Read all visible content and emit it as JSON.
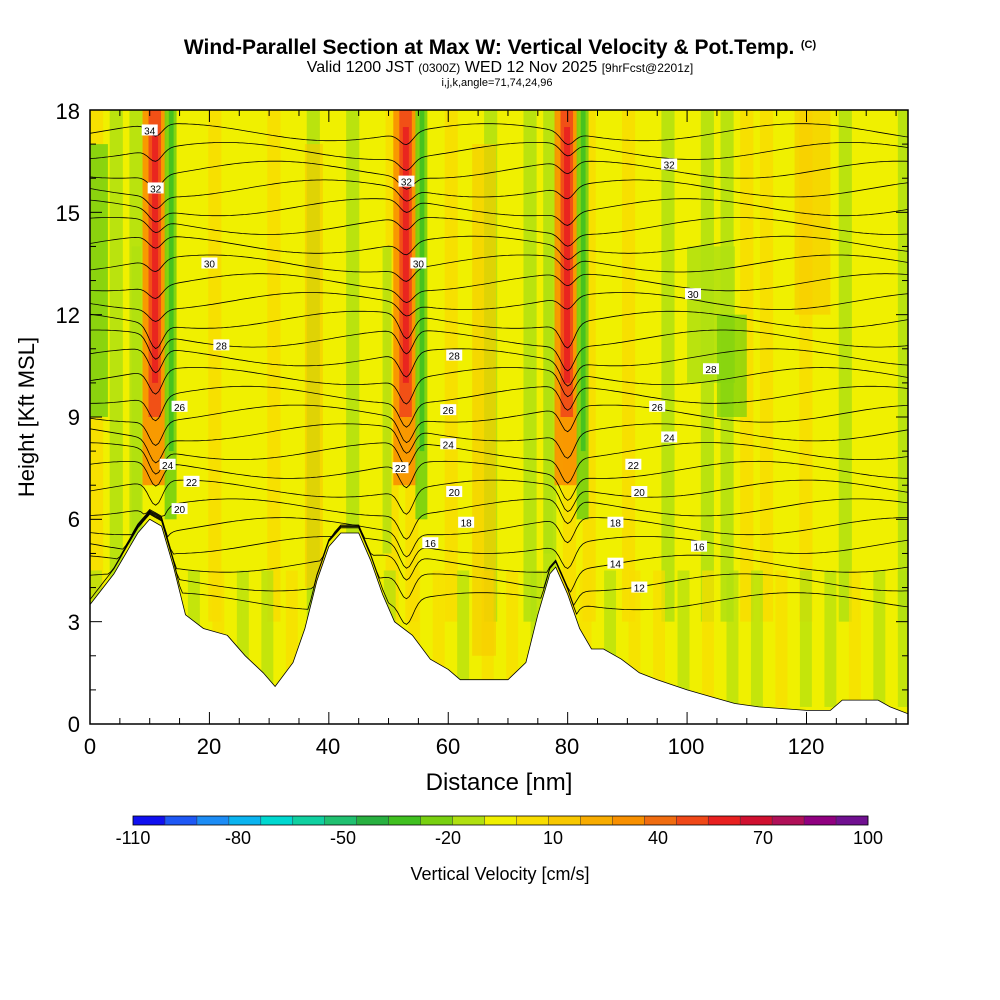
{
  "chart_data": {
    "type": "heatmap",
    "title": "Wind-Parallel Section at Max W: Vertical Velocity & Pot.Temp.",
    "title_mark": "(C)",
    "subtitle_parts": [
      "Valid 1200 JST",
      "(0300Z)",
      "WED 12 Nov 2025",
      "[9hrFcst@2201z]"
    ],
    "subtitle2": "i,j,k,angle=71,74,24,96",
    "xlabel": "Distance [nm]",
    "ylabel": "Height [Kft MSL]",
    "xlim": [
      0,
      137
    ],
    "ylim": [
      0,
      18
    ],
    "x_ticks": [
      "0",
      "20",
      "40",
      "60",
      "80",
      "100",
      "120"
    ],
    "y_ticks": [
      "0",
      "3",
      "6",
      "9",
      "12",
      "15",
      "18"
    ],
    "colorbar": {
      "label": "Vertical Velocity [cm/s]",
      "ticks": [
        "-110",
        "-80",
        "-50",
        "-20",
        "10",
        "40",
        "70",
        "100"
      ],
      "colors": [
        "#1010f0",
        "#1e58f5",
        "#1c8cf5",
        "#0ab4f0",
        "#00d8d0",
        "#10d0a0",
        "#20c070",
        "#28b040",
        "#40c020",
        "#78d010",
        "#b0e010",
        "#f0f000",
        "#f8dd00",
        "#f8c800",
        "#f8ac00",
        "#f89000",
        "#f06c10",
        "#f04818",
        "#e82020",
        "#d01030",
        "#b01058",
        "#900080",
        "#701090"
      ]
    },
    "updraft_columns_nm": [
      11,
      53,
      80
    ],
    "terrain_kft": [
      [
        0,
        3.5
      ],
      [
        4,
        4.4
      ],
      [
        8,
        5.6
      ],
      [
        10,
        6.0
      ],
      [
        12,
        5.8
      ],
      [
        14,
        4.6
      ],
      [
        16,
        3.2
      ],
      [
        19,
        2.8
      ],
      [
        23,
        2.6
      ],
      [
        26,
        2.0
      ],
      [
        29,
        1.5
      ],
      [
        31,
        1.1
      ],
      [
        34,
        1.8
      ],
      [
        36,
        2.8
      ],
      [
        38,
        4.2
      ],
      [
        40,
        5.2
      ],
      [
        42,
        5.6
      ],
      [
        45,
        5.6
      ],
      [
        47,
        4.8
      ],
      [
        49,
        3.8
      ],
      [
        51,
        3.0
      ],
      [
        54,
        2.6
      ],
      [
        57,
        1.9
      ],
      [
        60,
        1.6
      ],
      [
        62,
        1.3
      ],
      [
        66,
        1.3
      ],
      [
        70,
        1.3
      ],
      [
        73,
        1.8
      ],
      [
        75,
        3.2
      ],
      [
        77,
        4.4
      ],
      [
        78,
        4.6
      ],
      [
        80,
        3.8
      ],
      [
        82,
        2.8
      ],
      [
        84,
        2.2
      ],
      [
        86,
        2.2
      ],
      [
        89,
        1.9
      ],
      [
        92,
        1.5
      ],
      [
        95,
        1.3
      ],
      [
        100,
        1.0
      ],
      [
        104,
        0.8
      ],
      [
        108,
        0.6
      ],
      [
        112,
        0.5
      ],
      [
        120,
        0.4
      ],
      [
        124,
        0.4
      ],
      [
        126,
        0.7
      ],
      [
        132,
        0.7
      ],
      [
        134,
        0.5
      ],
      [
        137,
        0.3
      ]
    ],
    "isentropes": [
      {
        "label": "12",
        "base_kft": 4.0,
        "label_x_nm": 92
      },
      {
        "label": "14",
        "base_kft": 4.7,
        "label_x_nm": 88
      },
      {
        "label": "16",
        "base_kft": 5.2,
        "label_x_nm": 102
      },
      {
        "label": "16",
        "base_kft": 5.3,
        "label_x_nm": 57
      },
      {
        "label": "18",
        "base_kft": 5.9,
        "label_x_nm": 63
      },
      {
        "label": "18",
        "base_kft": 5.9,
        "label_x_nm": 88
      },
      {
        "label": "20",
        "base_kft": 6.3,
        "label_x_nm": 15
      },
      {
        "label": "20",
        "base_kft": 6.8,
        "label_x_nm": 61
      },
      {
        "label": "20",
        "base_kft": 6.8,
        "label_x_nm": 92
      },
      {
        "label": "22",
        "base_kft": 7.1,
        "label_x_nm": 17
      },
      {
        "label": "22",
        "base_kft": 7.5,
        "label_x_nm": 52
      },
      {
        "label": "22",
        "base_kft": 7.6,
        "label_x_nm": 91
      },
      {
        "label": "24",
        "base_kft": 7.6,
        "label_x_nm": 13
      },
      {
        "label": "24",
        "base_kft": 8.2,
        "label_x_nm": 60
      },
      {
        "label": "24",
        "base_kft": 8.4,
        "label_x_nm": 97
      },
      {
        "label": "26",
        "base_kft": 9.3,
        "label_x_nm": 15
      },
      {
        "label": "26",
        "base_kft": 9.2,
        "label_x_nm": 60
      },
      {
        "label": "26",
        "base_kft": 9.3,
        "label_x_nm": 95
      },
      {
        "label": "28",
        "base_kft": 11.1,
        "label_x_nm": 22
      },
      {
        "label": "28",
        "base_kft": 10.8,
        "label_x_nm": 61
      },
      {
        "label": "28",
        "base_kft": 10.4,
        "label_x_nm": 104
      },
      {
        "label": "30",
        "base_kft": 13.5,
        "label_x_nm": 20
      },
      {
        "label": "30",
        "base_kft": 13.5,
        "label_x_nm": 55
      },
      {
        "label": "30",
        "base_kft": 12.6,
        "label_x_nm": 101
      },
      {
        "label": "32",
        "base_kft": 15.7,
        "label_x_nm": 11
      },
      {
        "label": "32",
        "base_kft": 15.9,
        "label_x_nm": 53
      },
      {
        "label": "32",
        "base_kft": 16.4,
        "label_x_nm": 97
      },
      {
        "label": "34",
        "base_kft": 17.4,
        "label_x_nm": 10
      }
    ]
  }
}
